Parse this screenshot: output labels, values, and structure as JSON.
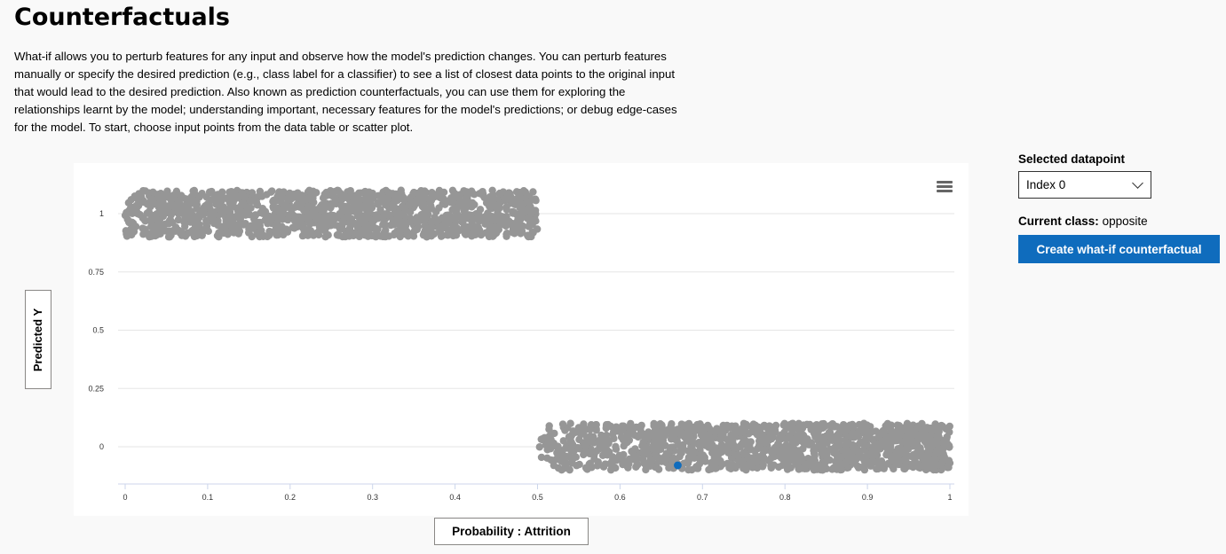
{
  "page": {
    "title": "Counterfactuals",
    "description": "What-if allows you to perturb features for any input and observe how the model's prediction changes. You can perturb features manually or specify the desired prediction (e.g., class label for a classifier) to see a list of closest data points to the original input that would lead to the desired prediction. Also known as prediction counterfactuals, you can use them for exploring the relationships learnt by the model; understanding important, necessary features for the model's predictions; or debug edge-cases for the model. To start, choose input points from the data table or scatter plot."
  },
  "chart": {
    "y_axis_button": "Predicted Y",
    "x_axis_button": "Probability : Attrition",
    "menu_icon": "hamburger-menu-icon",
    "point_color": "#969696",
    "selected_color": "#0f6cbd"
  },
  "chart_data": {
    "type": "scatter",
    "xlabel": "Probability : Attrition",
    "ylabel": "Predicted Y",
    "xlim": [
      0,
      1
    ],
    "ylim": [
      -0.15,
      1.15
    ],
    "x_ticks": [
      "0",
      "0.1",
      "0.2",
      "0.3",
      "0.4",
      "0.5",
      "0.6",
      "0.7",
      "0.8",
      "0.9",
      "1"
    ],
    "y_ticks": [
      "1",
      "0.75",
      "0.5",
      "0.25",
      "0"
    ],
    "grid": true,
    "clusters": [
      {
        "predicted_y": 1,
        "x_range": [
          0.0,
          0.5
        ],
        "jitter": 0.1
      },
      {
        "predicted_y": 0,
        "x_range": [
          0.5,
          1.0
        ],
        "jitter": 0.1
      }
    ],
    "selected_point": {
      "x": 0.67,
      "y": -0.08
    }
  },
  "sidebar": {
    "selected_label": "Selected datapoint",
    "selected_value": "Index 0",
    "current_class_label": "Current class:",
    "current_class_value": "opposite",
    "create_button": "Create what-if counterfactual"
  }
}
